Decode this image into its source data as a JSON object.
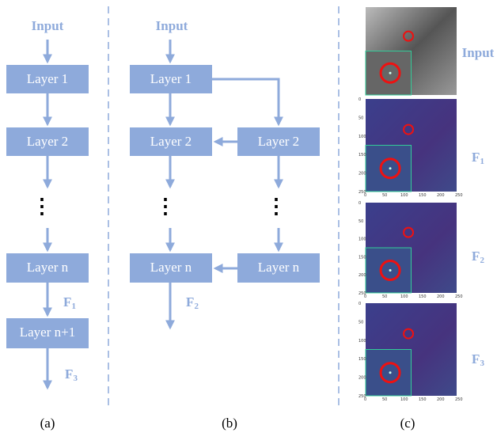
{
  "column_a": {
    "input": "Input",
    "layers": [
      "Layer 1",
      "Layer 2",
      "Layer n",
      "Layer n+1"
    ],
    "ellipsis": "⋮",
    "f1": {
      "main": "F",
      "sub": "1"
    },
    "f3": {
      "main": "F",
      "sub": "3"
    },
    "caption": "(a)"
  },
  "column_b": {
    "input": "Input",
    "left_layers": [
      "Layer 1",
      "Layer 2",
      "Layer n"
    ],
    "right_layers": [
      "Layer 2",
      "Layer n"
    ],
    "ellipsis": "⋮",
    "f2": {
      "main": "F",
      "sub": "2"
    },
    "caption": "(b)"
  },
  "column_c": {
    "labels": [
      {
        "main": "Input",
        "sub": ""
      },
      {
        "main": "F",
        "sub": "1"
      },
      {
        "main": "F",
        "sub": "2"
      },
      {
        "main": "F",
        "sub": "3"
      }
    ],
    "axis_ticks": [
      "0",
      "50",
      "100",
      "150",
      "200",
      "250"
    ],
    "caption": "(c)"
  }
}
